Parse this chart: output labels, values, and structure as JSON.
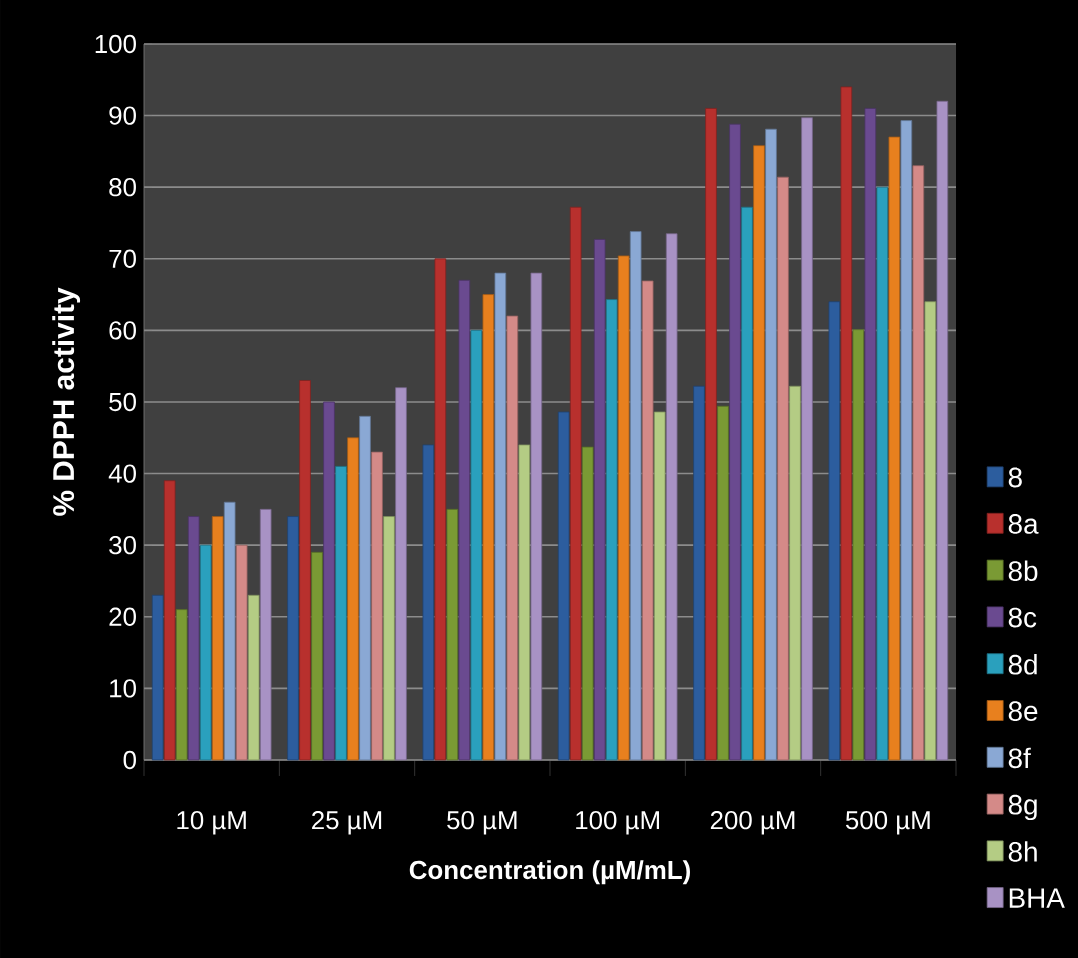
{
  "chart_data": {
    "type": "bar",
    "xlabel": "Concentration (µM/mL)",
    "ylabel": "% DPPH activity",
    "categories": [
      "10 µM",
      "25 µM",
      "50 µM",
      "100 µM",
      "200 µM",
      "500 µM"
    ],
    "series": [
      {
        "name": "8",
        "color": "#2c5d9e",
        "values": [
          23,
          34,
          44,
          48.6,
          52.2,
          64
        ]
      },
      {
        "name": "8a",
        "color": "#b8302d",
        "values": [
          39,
          53,
          70,
          77.2,
          91,
          94
        ]
      },
      {
        "name": "8b",
        "color": "#7a9a34",
        "values": [
          21,
          29,
          35,
          43.7,
          49.4,
          60.1
        ]
      },
      {
        "name": "8c",
        "color": "#6a4a90",
        "values": [
          34,
          50,
          67,
          72.7,
          88.8,
          91
        ]
      },
      {
        "name": "8d",
        "color": "#2aa0bd",
        "values": [
          30,
          41,
          60,
          64.3,
          77.2,
          80
        ]
      },
      {
        "name": "8e",
        "color": "#e8801e",
        "values": [
          34,
          45,
          65,
          70.4,
          85.8,
          87
        ]
      },
      {
        "name": "8f",
        "color": "#8aa8d4",
        "values": [
          36,
          48,
          68,
          73.8,
          88.1,
          89.3
        ]
      },
      {
        "name": "8g",
        "color": "#d48a88",
        "values": [
          30,
          43,
          62,
          66.9,
          81.4,
          83
        ]
      },
      {
        "name": "8h",
        "color": "#b4cc84",
        "values": [
          23,
          34,
          44,
          48.6,
          52.2,
          64
        ]
      },
      {
        "name": "BHA",
        "color": "#a892c4",
        "values": [
          35,
          52,
          68,
          73.5,
          89.7,
          92
        ]
      }
    ],
    "ylim": [
      0,
      100
    ],
    "yticks": [
      0,
      10,
      20,
      30,
      40,
      50,
      60,
      70,
      80,
      90,
      100
    ],
    "grid": "y",
    "legend": "right"
  }
}
